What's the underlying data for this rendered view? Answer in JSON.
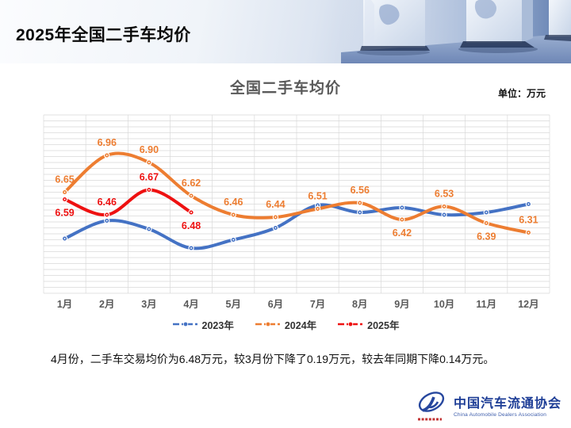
{
  "header": {
    "title": "2025年全国二手车均价"
  },
  "chart": {
    "title": "全国二手车均价",
    "unit_label": "单位：万元",
    "annotation": "4月份，二手车交易均价为6.48万元，较3月份下降了0.19万元，较去年同期下降0.14万元。"
  },
  "chart_data": {
    "type": "line",
    "title": "全国二手车均价",
    "unit": "万元",
    "categories": [
      "1月",
      "2月",
      "3月",
      "4月",
      "5月",
      "6月",
      "7月",
      "8月",
      "9月",
      "10月",
      "11月",
      "12月"
    ],
    "series": [
      {
        "name": "2023年",
        "color": "#4472C4",
        "values": [
          6.26,
          6.41,
          6.34,
          6.18,
          6.25,
          6.35,
          6.54,
          6.48,
          6.52,
          6.46,
          6.48,
          6.55
        ],
        "labels_shown": false
      },
      {
        "name": "2024年",
        "color": "#ED7D31",
        "values": [
          6.65,
          6.96,
          6.9,
          6.62,
          6.46,
          6.44,
          6.51,
          6.56,
          6.42,
          6.53,
          6.39,
          6.31
        ],
        "labels_shown": true,
        "label_positions": [
          "above",
          "above",
          "above",
          "above",
          "above",
          "above",
          "above",
          "above",
          "below",
          "above",
          "below",
          "above"
        ]
      },
      {
        "name": "2025年",
        "color": "#EE1111",
        "values": [
          6.59,
          6.46,
          6.67,
          6.48
        ],
        "labels_shown": true,
        "label_positions": [
          "below",
          "above",
          "above",
          "below"
        ]
      }
    ],
    "ylim": [
      5.8,
      7.3
    ],
    "grid_step": 0.05,
    "smooth": true,
    "grid": true,
    "legend_position": "bottom",
    "axis_text_color": "#595959",
    "grid_color": "#D9D9D9"
  },
  "footer": {
    "logo_cn": "中国汽车流通协会",
    "logo_en": "China Automobile Dealers Association"
  }
}
